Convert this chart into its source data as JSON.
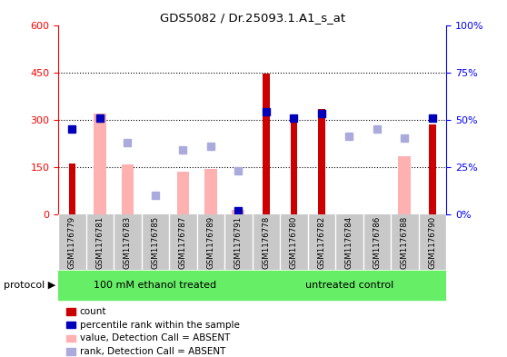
{
  "title": "GDS5082 / Dr.25093.1.A1_s_at",
  "samples": [
    "GSM1176779",
    "GSM1176781",
    "GSM1176783",
    "GSM1176785",
    "GSM1176787",
    "GSM1176789",
    "GSM1176791",
    "GSM1176778",
    "GSM1176780",
    "GSM1176782",
    "GSM1176784",
    "GSM1176786",
    "GSM1176788",
    "GSM1176790"
  ],
  "count_values": [
    160,
    0,
    0,
    0,
    0,
    0,
    0,
    445,
    310,
    335,
    0,
    0,
    0,
    285
  ],
  "percentile_pct": [
    45,
    51,
    0,
    0,
    0,
    0,
    2,
    54,
    51,
    53,
    0,
    0,
    0,
    51
  ],
  "value_absent": [
    0,
    320,
    158,
    0,
    135,
    143,
    13,
    0,
    0,
    0,
    0,
    0,
    183,
    0
  ],
  "rank_absent_pct": [
    0,
    51,
    38,
    10,
    34,
    36,
    23,
    0,
    0,
    0,
    41,
    45,
    40,
    0
  ],
  "left_ylim": [
    0,
    600
  ],
  "right_ylim": [
    0,
    100
  ],
  "left_yticks": [
    0,
    150,
    300,
    450,
    600
  ],
  "right_yticks": [
    0,
    25,
    50,
    75,
    100
  ],
  "right_yticklabels": [
    "0%",
    "25%",
    "50%",
    "75%",
    "100%"
  ],
  "count_color": "#CC0000",
  "percentile_color": "#0000BB",
  "value_absent_color": "#FFB0B0",
  "rank_absent_color": "#AAAADD",
  "bg_color": "#C8C8C8",
  "protocol_color": "#66EE66",
  "n_treated": 7,
  "n_control": 7
}
